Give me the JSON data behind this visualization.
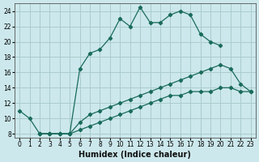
{
  "xlabel": "Humidex (Indice chaleur)",
  "bg_color": "#cce8ec",
  "grid_color": "#aacccc",
  "line_color": "#1a6b5a",
  "xlim": [
    -0.5,
    23.5
  ],
  "ylim": [
    7.5,
    25
  ],
  "xticks": [
    0,
    1,
    2,
    3,
    4,
    5,
    6,
    7,
    8,
    9,
    10,
    11,
    12,
    13,
    14,
    15,
    16,
    17,
    18,
    19,
    20,
    21,
    22,
    23
  ],
  "yticks": [
    8,
    10,
    12,
    14,
    16,
    18,
    20,
    22,
    24
  ],
  "line1_x": [
    0,
    1,
    2,
    3,
    4,
    5,
    6,
    7,
    8,
    9,
    10,
    11,
    12,
    13,
    14,
    15,
    16,
    17,
    18,
    19,
    20
  ],
  "line1_y": [
    11,
    10,
    8,
    8,
    8,
    8,
    16.5,
    18.5,
    19.0,
    20.5,
    23.0,
    22.0,
    24.5,
    22.5,
    22.5,
    23.5,
    24.0,
    23.5,
    21.0,
    20.0,
    19.5
  ],
  "line2_x": [
    2,
    3,
    4,
    5,
    6,
    7,
    8,
    9,
    10,
    11,
    12,
    13,
    14,
    15,
    16,
    17,
    18,
    19,
    20,
    21,
    22,
    23
  ],
  "line2_y": [
    8,
    8,
    8,
    8,
    9.5,
    10.5,
    11.0,
    11.5,
    12.0,
    12.5,
    13.0,
    13.5,
    14.0,
    14.5,
    15.0,
    15.5,
    16.0,
    16.5,
    17.0,
    16.5,
    14.5,
    13.5
  ],
  "line3_x": [
    2,
    3,
    4,
    5,
    6,
    7,
    8,
    9,
    10,
    11,
    12,
    13,
    14,
    15,
    16,
    17,
    18,
    19,
    20,
    21,
    22,
    23
  ],
  "line3_y": [
    8,
    8,
    8,
    8,
    8.5,
    9.0,
    9.5,
    10.0,
    10.5,
    11.0,
    11.5,
    12.0,
    12.5,
    13.0,
    13.0,
    13.5,
    13.5,
    13.5,
    14.0,
    14.0,
    13.5,
    13.5
  ],
  "tick_fontsize": 5.5,
  "xlabel_fontsize": 7.0
}
